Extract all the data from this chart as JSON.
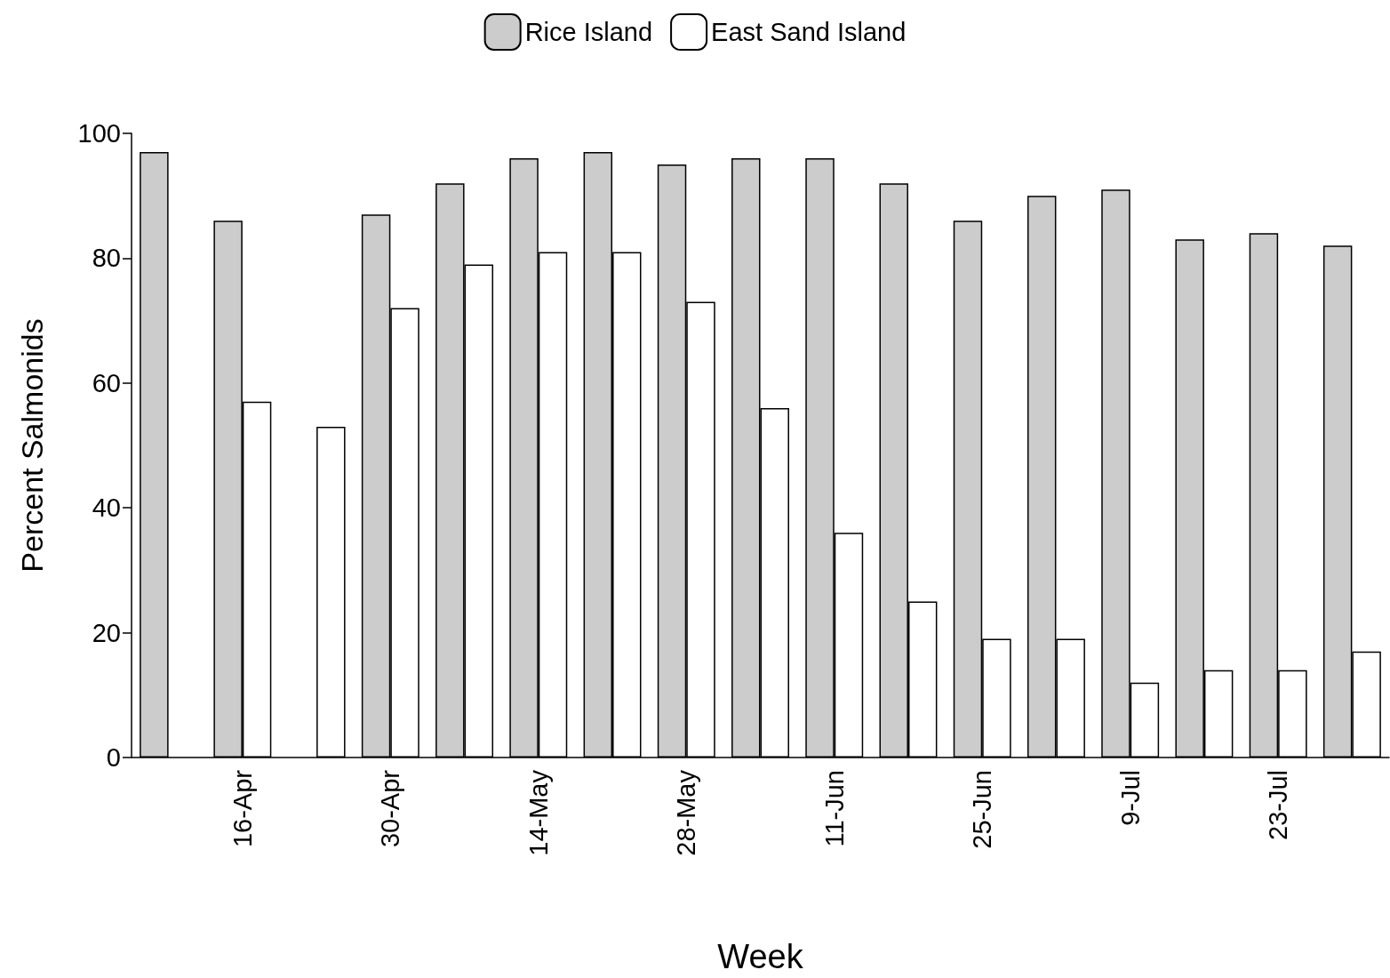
{
  "chart_data": {
    "type": "bar",
    "xlabel": "Week",
    "ylabel": "Percent Salmonids",
    "categories": [
      null,
      "16-Apr",
      null,
      "30-Apr",
      null,
      "14-May",
      null,
      "28-May",
      null,
      "11-Jun",
      null,
      "25-Jun",
      null,
      "9-Jul",
      null,
      "23-Jul",
      null
    ],
    "series": [
      {
        "name": "Rice Island",
        "color": "#cccccc",
        "values": [
          97,
          86,
          null,
          87,
          92,
          96,
          97,
          95,
          96,
          96,
          92,
          86,
          90,
          91,
          83,
          84,
          82
        ]
      },
      {
        "name": "East Sand Island",
        "color": "#ffffff",
        "values": [
          null,
          57,
          53,
          72,
          79,
          81,
          81,
          73,
          56,
          36,
          25,
          19,
          19,
          12,
          14,
          14,
          17
        ]
      }
    ],
    "ylim": [
      0,
      100
    ],
    "yticks": [
      0,
      20,
      40,
      60,
      80,
      100
    ],
    "grid": false,
    "legend": "top"
  }
}
